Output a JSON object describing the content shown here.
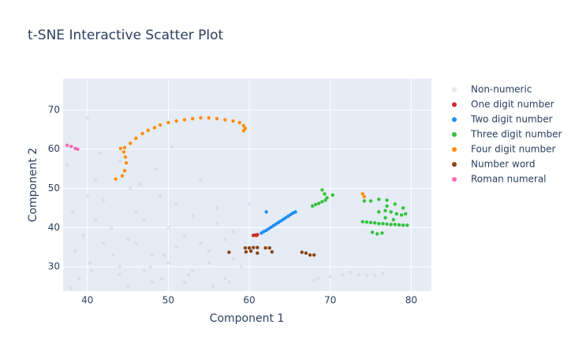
{
  "chart_data": {
    "type": "scatter",
    "title": "t-SNE Interactive Scatter Plot",
    "x_label": "Component 1",
    "y_label": "Component 2",
    "xlim": [
      37,
      82.5
    ],
    "ylim": [
      23.8,
      78
    ],
    "xticks": [
      40,
      50,
      60,
      70,
      80
    ],
    "yticks": [
      30,
      40,
      50,
      60,
      70
    ],
    "grid": true,
    "series": [
      {
        "name": "Non-numeric",
        "color": "#d4d4d4",
        "x": [
          37.5,
          38.2,
          39.5,
          40.3,
          41,
          42,
          43.2,
          44,
          45.3,
          46,
          47,
          47.8,
          48.5,
          49.2,
          50,
          51,
          52,
          53,
          54,
          55,
          56,
          57,
          58,
          59,
          60,
          38.5,
          40,
          42,
          44,
          46,
          48,
          50,
          52,
          54,
          56,
          58,
          39,
          41,
          43,
          45,
          47,
          49,
          51,
          53,
          55,
          57,
          38,
          40.5,
          45,
          50.5,
          55.5,
          41.5,
          46.5,
          52.5,
          48,
          44,
          68.5,
          70,
          71.5,
          72.5,
          73.5,
          74.5,
          75.5,
          76.5,
          68,
          40,
          49.5,
          57.5
        ],
        "y": [
          56,
          44,
          38,
          31,
          42,
          47,
          33,
          28,
          50,
          36,
          42,
          30,
          55,
          27,
          31,
          46,
          38,
          29,
          52,
          34,
          41,
          27,
          39,
          30,
          46,
          34,
          48,
          36,
          30,
          44,
          33,
          40,
          26,
          36,
          45,
          32,
          27,
          52,
          40,
          25,
          29,
          48,
          35,
          43,
          31,
          37,
          24.5,
          29,
          37,
          60.5,
          25,
          59,
          51,
          28,
          26,
          57,
          27,
          27.5,
          28,
          28.5,
          28,
          27.8,
          27.8,
          28.3,
          26.5,
          68,
          33,
          26
        ]
      },
      {
        "name": "One digit number",
        "color": "#d62728",
        "x": [
          60.5,
          60.7,
          60.9,
          61.0
        ],
        "y": [
          38.0,
          38.1,
          38.0,
          38.2
        ]
      },
      {
        "name": "Two digit number",
        "color": "#1f8ff0",
        "x": [
          61.5,
          61.8,
          62.1,
          62.4,
          62.7,
          63.0,
          63.3,
          63.6,
          63.9,
          64.2,
          64.5,
          64.8,
          65.1,
          65.4,
          65.7,
          62.1
        ],
        "y": [
          38.6,
          39.0,
          39.3,
          39.7,
          40.1,
          40.5,
          40.9,
          41.3,
          41.7,
          42.1,
          42.5,
          42.9,
          43.3,
          43.7,
          44.0,
          44.0
        ]
      },
      {
        "name": "Three digit number",
        "color": "#33c13a",
        "x": [
          67.8,
          68.2,
          68.6,
          69.0,
          69.4,
          69.6,
          69.3,
          69.0,
          70.3,
          74.0,
          74.5,
          75.0,
          75.5,
          76.0,
          76.5,
          77.0,
          77.5,
          78.0,
          78.5,
          79.0,
          79.5,
          74.2,
          75.0,
          76.0,
          77.0,
          78.0,
          79.0,
          75.2,
          75.8,
          76.4,
          76.0,
          76.8,
          77.5,
          78.2,
          78.8,
          79.3,
          77.0,
          76.8,
          77.8
        ],
        "y": [
          45.5,
          45.9,
          46.2,
          46.6,
          47.0,
          47.6,
          48.6,
          49.6,
          48.3,
          41.5,
          41.4,
          41.3,
          41.2,
          41.0,
          41.0,
          40.9,
          40.8,
          40.8,
          40.7,
          40.6,
          40.6,
          46.8,
          46.8,
          47.2,
          47.0,
          46.0,
          45.0,
          38.8,
          38.4,
          38.6,
          44.0,
          44.3,
          44.0,
          43.5,
          43.2,
          43.5,
          45.5,
          42.5,
          42.0
        ]
      },
      {
        "name": "Four digit number",
        "color": "#ff8c00",
        "x": [
          43.5,
          44.3,
          44.6,
          44.8,
          44.7,
          44.5,
          44.1,
          44.6,
          45.3,
          46.0,
          46.8,
          47.5,
          48.3,
          49.0,
          50.0,
          51.0,
          52.0,
          53.0,
          54.0,
          55.0,
          56.0,
          57.0,
          58.0,
          58.8,
          59.3,
          59.5,
          59.3,
          74.0,
          74.2
        ],
        "y": [
          52.4,
          53.2,
          54.5,
          56.5,
          58.0,
          59.3,
          60.2,
          60.4,
          61.5,
          62.8,
          64.0,
          64.8,
          65.5,
          66.2,
          66.8,
          67.2,
          67.5,
          67.8,
          68.0,
          68.0,
          67.8,
          67.5,
          67.2,
          66.8,
          66.0,
          65.3,
          64.7,
          48.6,
          47.9
        ]
      },
      {
        "name": "Number word",
        "color": "#8b4513",
        "x": [
          57.5,
          59.5,
          60.0,
          60.5,
          61.0,
          59.6,
          60.2,
          61.0,
          62.0,
          62.5,
          62.8,
          66.5,
          67.0,
          67.5,
          68.0
        ],
        "y": [
          33.7,
          34.8,
          34.8,
          34.9,
          34.9,
          33.8,
          34.0,
          33.5,
          34.8,
          34.8,
          33.8,
          33.7,
          33.5,
          33.0,
          33.0
        ]
      },
      {
        "name": "Roman numeral",
        "color": "#ff69b4",
        "x": [
          37.5,
          38.0,
          38.5,
          38.8
        ],
        "y": [
          61.0,
          60.7,
          60.2,
          60.0
        ]
      }
    ]
  }
}
